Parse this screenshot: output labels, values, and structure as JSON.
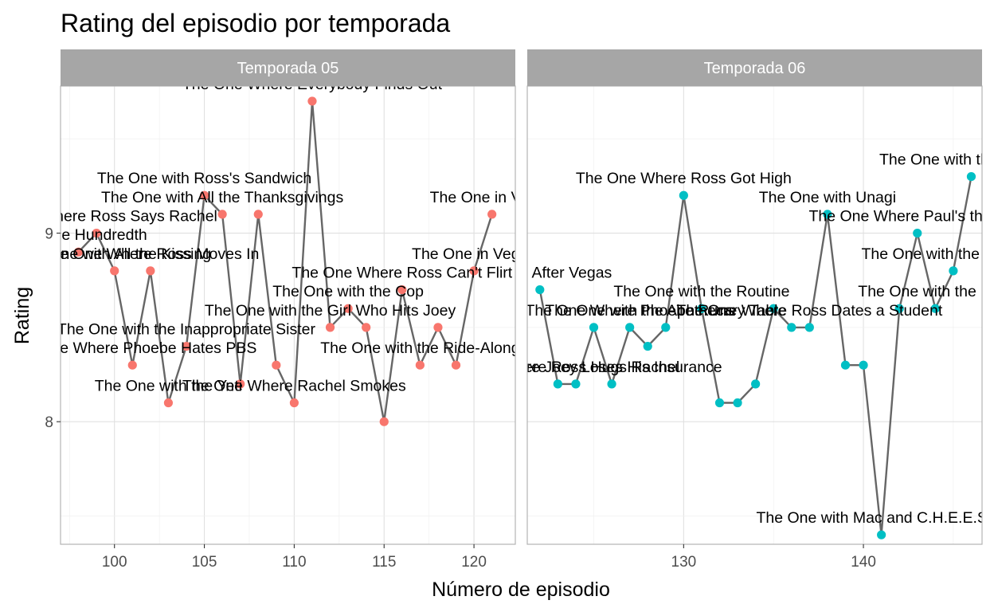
{
  "chart_data": {
    "type": "line",
    "title": "Rating del episodio por temporada",
    "xlabel": "Número de episodio",
    "ylabel": "Rating",
    "ylim": [
      7.35,
      9.78
    ],
    "yticks": [
      8,
      9
    ],
    "grid": true,
    "colors": {
      "Temporada 05": "#F8766D",
      "Temporada 06": "#00BFC4",
      "line": "#666666",
      "strip": "#A6A6A6"
    },
    "panels": [
      {
        "name": "Temporada 05",
        "xlim": [
          97.0,
          122.3
        ],
        "xticks": [
          100,
          105,
          110,
          115,
          120
        ],
        "points": [
          {
            "x": 98,
            "y": 8.9,
            "label": "The One Hundredth"
          },
          {
            "x": 99,
            "y": 9.0,
            "label": "The One Where Ross Says Rachel"
          },
          {
            "x": 100,
            "y": 8.8,
            "label": "The One with All the Kissing"
          },
          {
            "x": 101,
            "y": 8.3,
            "label": "The One Where Phoebe Hates PBS"
          },
          {
            "x": 102,
            "y": 8.8,
            "label": "The One Where Ross Moves In"
          },
          {
            "x": 103,
            "y": 8.1,
            "label": "The One with the Yeti"
          },
          {
            "x": 104,
            "y": 8.4,
            "label": "The One with the Inappropriate Sister"
          },
          {
            "x": 105,
            "y": 9.2,
            "label": "The One with Ross's Sandwich"
          },
          {
            "x": 106,
            "y": 9.1,
            "label": "The One with All the Thanksgivings"
          },
          {
            "x": 107,
            "y": 8.2,
            "label": ""
          },
          {
            "x": 108,
            "y": 9.1,
            "label": ""
          },
          {
            "x": 109,
            "y": 8.3,
            "label": ""
          },
          {
            "x": 110,
            "y": 8.1,
            "label": "The One Where Rachel Smokes"
          },
          {
            "x": 111,
            "y": 9.7,
            "label": "The One Where Everybody Finds Out"
          },
          {
            "x": 112,
            "y": 8.5,
            "label": "The One with the Girl Who Hits Joey"
          },
          {
            "x": 113,
            "y": 8.6,
            "label": "The One with the Cop"
          },
          {
            "x": 114,
            "y": 8.5,
            "label": ""
          },
          {
            "x": 115,
            "y": 8.0,
            "label": ""
          },
          {
            "x": 116,
            "y": 8.7,
            "label": "The One Where Ross Can't Flirt"
          },
          {
            "x": 117,
            "y": 8.3,
            "label": "The One with the Ride-Along"
          },
          {
            "x": 118,
            "y": 8.5,
            "label": ""
          },
          {
            "x": 119,
            "y": 8.3,
            "label": ""
          },
          {
            "x": 120,
            "y": 8.8,
            "label": "The One in Vegas"
          },
          {
            "x": 121,
            "y": 9.1,
            "label": "The One in Vegas"
          }
        ]
      },
      {
        "name": "Temporada 06",
        "xlim": [
          121.3,
          146.6
        ],
        "xticks": [
          130,
          140
        ],
        "points": [
          {
            "x": 122,
            "y": 8.7,
            "label": "The One After Vegas"
          },
          {
            "x": 123,
            "y": 8.2,
            "label": "The One Where Ross Hugs Rachel"
          },
          {
            "x": 124,
            "y": 8.2,
            "label": "The One Where Joey Loses His Insurance"
          },
          {
            "x": 125,
            "y": 8.5,
            "label": ""
          },
          {
            "x": 126,
            "y": 8.2,
            "label": ""
          },
          {
            "x": 127,
            "y": 8.5,
            "label": "The One Where Phoebe Runs"
          },
          {
            "x": 128,
            "y": 8.4,
            "label": ""
          },
          {
            "x": 129,
            "y": 8.5,
            "label": "The One with the Apothecary Table"
          },
          {
            "x": 130,
            "y": 9.2,
            "label": "The One Where Ross Got High"
          },
          {
            "x": 131,
            "y": 8.6,
            "label": "The One with the Routine"
          },
          {
            "x": 132,
            "y": 8.1,
            "label": ""
          },
          {
            "x": 133,
            "y": 8.1,
            "label": ""
          },
          {
            "x": 134,
            "y": 8.2,
            "label": ""
          },
          {
            "x": 135,
            "y": 8.6,
            "label": ""
          },
          {
            "x": 136,
            "y": 8.5,
            "label": ""
          },
          {
            "x": 137,
            "y": 8.5,
            "label": "The One Where Ross Dates a Student"
          },
          {
            "x": 138,
            "y": 9.1,
            "label": "The One with Unagi"
          },
          {
            "x": 139,
            "y": 8.3,
            "label": ""
          },
          {
            "x": 140,
            "y": 8.3,
            "label": ""
          },
          {
            "x": 141,
            "y": 7.4,
            "label": "The One with Mac and C.H.E.E.S.E."
          },
          {
            "x": 142,
            "y": 8.6,
            "label": ""
          },
          {
            "x": 143,
            "y": 9.0,
            "label": "The One Where Paul's the Man"
          },
          {
            "x": 144,
            "y": 8.6,
            "label": "The One with the Ring"
          },
          {
            "x": 145,
            "y": 8.8,
            "label": "The One with the Proposal"
          },
          {
            "x": 146,
            "y": 9.3,
            "label": "The One with the Proposal"
          }
        ]
      }
    ]
  }
}
